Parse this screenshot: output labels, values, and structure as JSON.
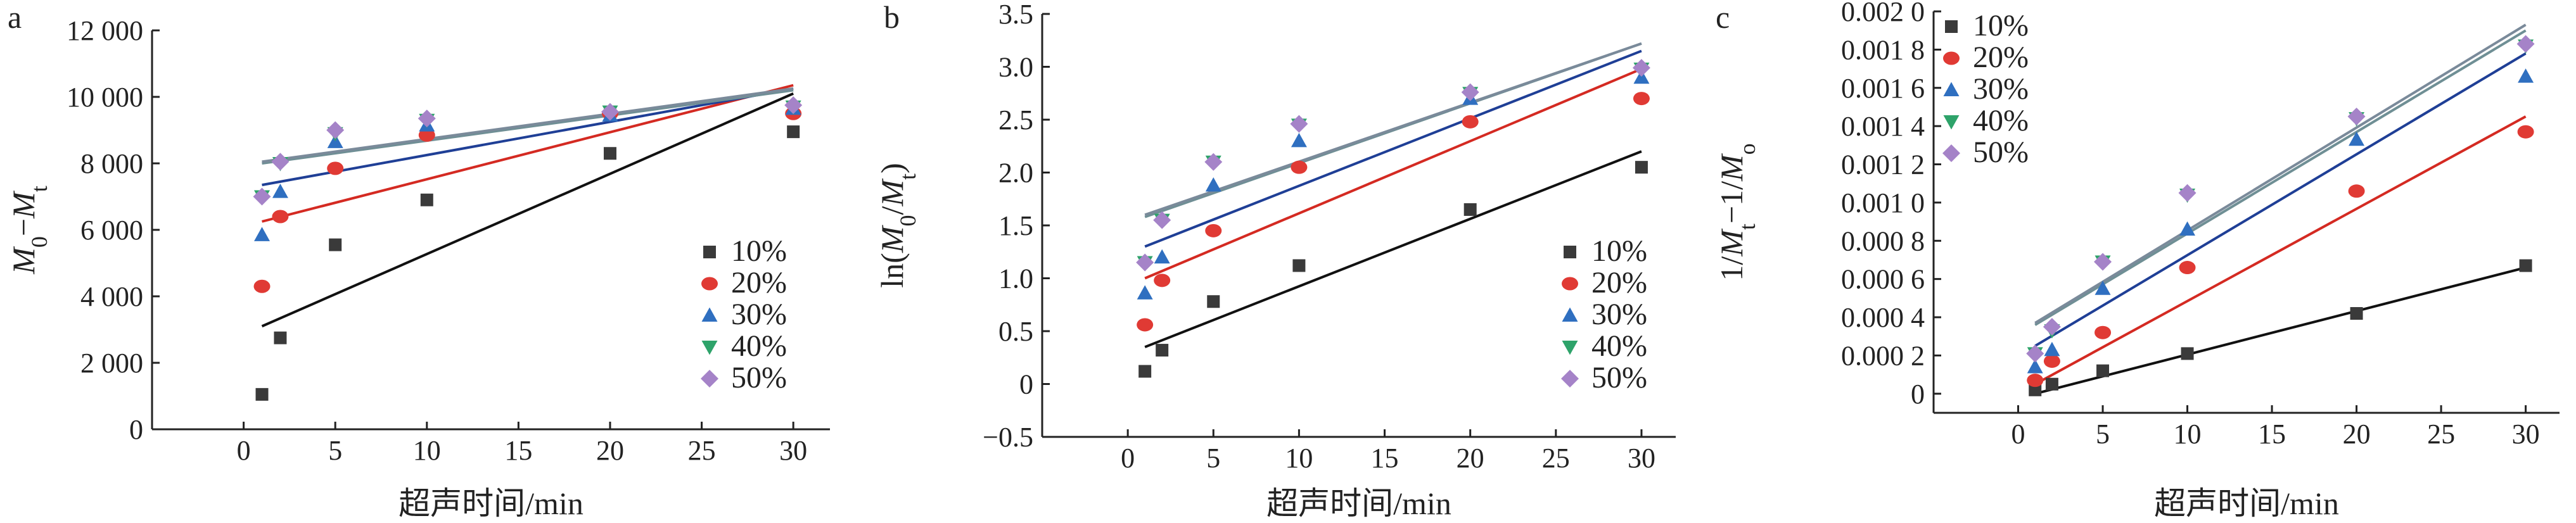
{
  "figure": {
    "panels": [
      "a",
      "b",
      "c"
    ]
  },
  "colors": {
    "10%": "#3a3a3a",
    "20%": "#e03a34",
    "30%": "#2f6fc0",
    "40%": "#2ea36a",
    "50%": "#a583c8"
  },
  "markers": {
    "10%": "square",
    "20%": "circle",
    "30%": "triangle-up",
    "40%": "triangle-down",
    "50%": "diamond"
  },
  "fit_colors": {
    "10%": "#111111",
    "20%": "#d42a22",
    "30%": "#1f3f96",
    "40%": "#6f8f95",
    "50%": "#7a8a9a"
  },
  "chart_data": [
    {
      "type": "scatter",
      "panel": "a",
      "xlabel": "超声时间/min",
      "ylabel": "M0−Mt",
      "ylabel_parts": [
        "M",
        "0",
        "−",
        "M",
        "t"
      ],
      "xlim": [
        -5,
        32
      ],
      "ylim": [
        0,
        12000
      ],
      "xticks": [
        0,
        5,
        10,
        15,
        20,
        25,
        30
      ],
      "xtick_labels": [
        "0",
        "5",
        "10",
        "15",
        "20",
        "25",
        "30"
      ],
      "yticks": [
        0,
        2000,
        4000,
        6000,
        8000,
        10000,
        12000
      ],
      "ytick_labels": [
        "0",
        "2 000",
        "4 000",
        "6 000",
        "8 000",
        "10 000",
        "12 000"
      ],
      "legend_placement": "bottom-right",
      "series": [
        {
          "name": "10%",
          "x": [
            1,
            2,
            5,
            10,
            20,
            30
          ],
          "y": [
            1050,
            2750,
            5550,
            6900,
            8300,
            8950
          ],
          "fit": [
            [
              1,
              3100
            ],
            [
              30,
              10100
            ]
          ]
        },
        {
          "name": "20%",
          "x": [
            1,
            2,
            5,
            10,
            20,
            30
          ],
          "y": [
            4300,
            6400,
            7850,
            8850,
            9500,
            9500
          ],
          "fit": [
            [
              1,
              6250
            ],
            [
              30,
              10350
            ]
          ]
        },
        {
          "name": "30%",
          "x": [
            1,
            2,
            5,
            10,
            20,
            30
          ],
          "y": [
            5850,
            7150,
            8650,
            9150,
            9450,
            9650
          ],
          "fit": [
            [
              1,
              7350
            ],
            [
              30,
              10250
            ]
          ]
        },
        {
          "name": "40%",
          "x": [
            1,
            2,
            5,
            10,
            20,
            30
          ],
          "y": [
            7000,
            8000,
            8900,
            9300,
            9550,
            9700
          ],
          "fit": [
            [
              1,
              8000
            ],
            [
              30,
              10200
            ]
          ]
        },
        {
          "name": "50%",
          "x": [
            1,
            2,
            5,
            10,
            20,
            30
          ],
          "y": [
            7000,
            8050,
            9000,
            9350,
            9550,
            9750
          ],
          "fit": [
            [
              1,
              8050
            ],
            [
              30,
              10250
            ]
          ]
        }
      ]
    },
    {
      "type": "scatter",
      "panel": "b",
      "xlabel": "超声时间/min",
      "ylabel": "ln(M0/Mt)",
      "ylabel_parts": [
        "ln(",
        "M",
        "0",
        "/",
        "M",
        "t",
        ")"
      ],
      "xlim": [
        -5,
        32
      ],
      "ylim": [
        -0.5,
        3.5
      ],
      "xticks": [
        0,
        5,
        10,
        15,
        20,
        25,
        30
      ],
      "xtick_labels": [
        "0",
        "5",
        "10",
        "15",
        "20",
        "25",
        "30"
      ],
      "yticks": [
        -0.5,
        0,
        0.5,
        1.0,
        1.5,
        2.0,
        2.5,
        3.0,
        3.5
      ],
      "ytick_labels": [
        "−0.5",
        "0",
        "0.5",
        "1.0",
        "1.5",
        "2.0",
        "2.5",
        "3.0",
        "3.5"
      ],
      "legend_placement": "bottom-right",
      "series": [
        {
          "name": "10%",
          "x": [
            1,
            2,
            5,
            10,
            20,
            30
          ],
          "y": [
            0.12,
            0.32,
            0.78,
            1.12,
            1.65,
            2.05
          ],
          "fit": [
            [
              1,
              0.35
            ],
            [
              30,
              2.2
            ]
          ]
        },
        {
          "name": "20%",
          "x": [
            1,
            2,
            5,
            10,
            20,
            30
          ],
          "y": [
            0.56,
            0.98,
            1.45,
            2.05,
            2.48,
            2.7
          ],
          "fit": [
            [
              1,
              1.0
            ],
            [
              30,
              2.98
            ]
          ]
        },
        {
          "name": "30%",
          "x": [
            1,
            2,
            5,
            10,
            20,
            30
          ],
          "y": [
            0.86,
            1.2,
            1.88,
            2.3,
            2.7,
            2.9
          ],
          "fit": [
            [
              1,
              1.3
            ],
            [
              30,
              3.15
            ]
          ]
        },
        {
          "name": "40%",
          "x": [
            1,
            2,
            5,
            10,
            20,
            30
          ],
          "y": [
            1.15,
            1.55,
            2.1,
            2.45,
            2.75,
            2.98
          ],
          "fit": [
            [
              1,
              1.58
            ],
            [
              30,
              3.22
            ]
          ]
        },
        {
          "name": "50%",
          "x": [
            1,
            2,
            5,
            10,
            20,
            30
          ],
          "y": [
            1.15,
            1.55,
            2.1,
            2.46,
            2.76,
            2.99
          ],
          "fit": [
            [
              1,
              1.6
            ],
            [
              30,
              3.22
            ]
          ]
        }
      ]
    },
    {
      "type": "scatter",
      "panel": "c",
      "xlabel": "超声时间/min",
      "ylabel": "1/Mt−1/Mo",
      "ylabel_parts": [
        "1/",
        "M",
        "t",
        "−1/",
        "M",
        "o"
      ],
      "xlim": [
        -5,
        32
      ],
      "ylim": [
        -0.0001,
        0.002
      ],
      "xticks": [
        0,
        5,
        10,
        15,
        20,
        25,
        30
      ],
      "xtick_labels": [
        "0",
        "5",
        "10",
        "15",
        "20",
        "25",
        "30"
      ],
      "yticks": [
        0,
        0.0002,
        0.0004,
        0.0006,
        0.0008,
        0.001,
        0.0012,
        0.0014,
        0.0016,
        0.0018,
        0.002
      ],
      "ytick_labels": [
        "0",
        "0.000 2",
        "0.000 4",
        "0.000 6",
        "0.000 8",
        "0.001 0",
        "0.001 2",
        "0.001 4",
        "0.001 6",
        "0.001 8",
        "0.002 0"
      ],
      "legend_placement": "top-left",
      "series": [
        {
          "name": "10%",
          "x": [
            1,
            2,
            5,
            10,
            20,
            30
          ],
          "y": [
            2e-05,
            5e-05,
            0.00012,
            0.00021,
            0.00042,
            0.00067
          ],
          "fit": [
            [
              1,
              0.0
            ],
            [
              30,
              0.00066
            ]
          ]
        },
        {
          "name": "20%",
          "x": [
            1,
            2,
            5,
            10,
            20,
            30
          ],
          "y": [
            7e-05,
            0.00017,
            0.00032,
            0.00066,
            0.00106,
            0.00137
          ],
          "fit": [
            [
              1,
              5e-05
            ],
            [
              30,
              0.00145
            ]
          ]
        },
        {
          "name": "30%",
          "x": [
            1,
            2,
            5,
            10,
            20,
            30
          ],
          "y": [
            0.00014,
            0.00023,
            0.00055,
            0.00086,
            0.00133,
            0.00166
          ],
          "fit": [
            [
              1,
              0.00025
            ],
            [
              30,
              0.00178
            ]
          ]
        },
        {
          "name": "40%",
          "x": [
            1,
            2,
            5,
            10,
            20,
            30
          ],
          "y": [
            0.00021,
            0.00033,
            0.00069,
            0.00104,
            0.00144,
            0.00182
          ],
          "fit": [
            [
              1,
              0.00036
            ],
            [
              30,
              0.0019
            ]
          ]
        },
        {
          "name": "50%",
          "x": [
            1,
            2,
            5,
            10,
            20,
            30
          ],
          "y": [
            0.00021,
            0.00035,
            0.00069,
            0.00105,
            0.00145,
            0.00183
          ],
          "fit": [
            [
              1,
              0.00037
            ],
            [
              30,
              0.00193
            ]
          ]
        }
      ]
    }
  ]
}
